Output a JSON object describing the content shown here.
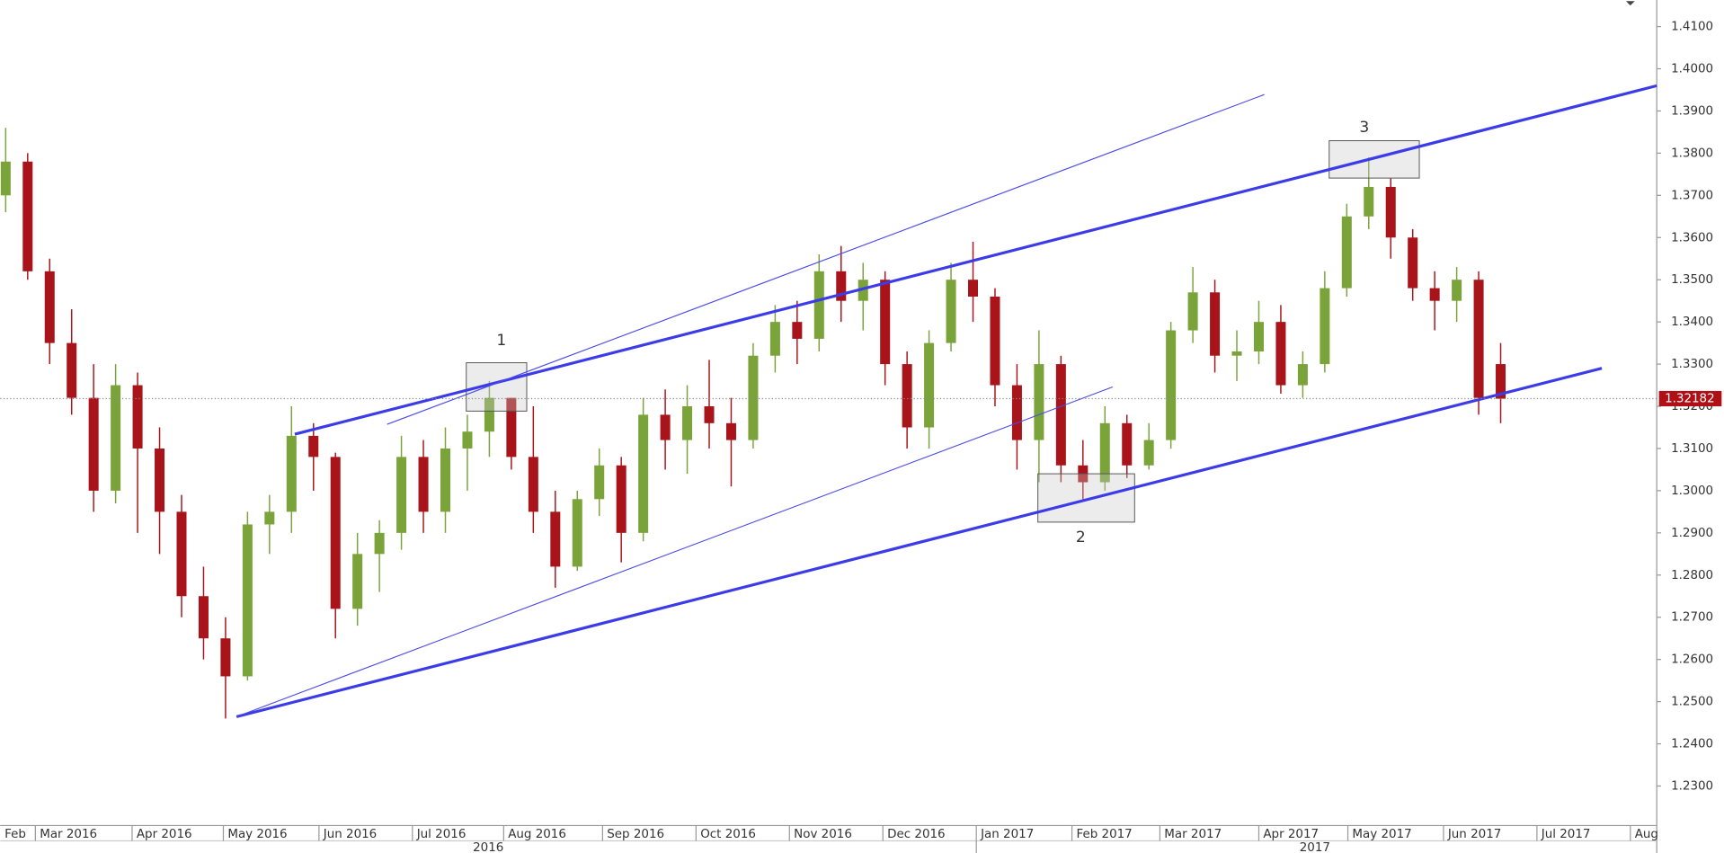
{
  "chart_data": {
    "type": "candlestick",
    "open": [
      1.37,
      1.378,
      1.352,
      1.335,
      1.322,
      1.3,
      1.325,
      1.31,
      1.295,
      1.275,
      1.265,
      1.256,
      1.292,
      1.295,
      1.313,
      1.308,
      1.272,
      1.285,
      1.29,
      1.308,
      1.295,
      1.31,
      1.314,
      1.322,
      1.308,
      1.295,
      1.282,
      1.298,
      1.306,
      1.29,
      1.318,
      1.312,
      1.32,
      1.316,
      1.312,
      1.332,
      1.34,
      1.336,
      1.352,
      1.345,
      1.35,
      1.33,
      1.315,
      1.335,
      1.35,
      1.346,
      1.325,
      1.312,
      1.33,
      1.306,
      1.302,
      1.316,
      1.306,
      1.312,
      1.338,
      1.347,
      1.332,
      1.333,
      1.34,
      1.325,
      1.33,
      1.348,
      1.365,
      1.372,
      1.36,
      1.348,
      1.345,
      1.35,
      1.33
    ],
    "high": [
      1.386,
      1.38,
      1.355,
      1.343,
      1.33,
      1.33,
      1.328,
      1.315,
      1.299,
      1.282,
      1.27,
      1.295,
      1.299,
      1.32,
      1.316,
      1.309,
      1.29,
      1.293,
      1.313,
      1.312,
      1.315,
      1.318,
      1.326,
      1.322,
      1.32,
      1.3,
      1.3,
      1.31,
      1.308,
      1.322,
      1.324,
      1.325,
      1.331,
      1.322,
      1.335,
      1.344,
      1.345,
      1.356,
      1.358,
      1.354,
      1.352,
      1.333,
      1.338,
      1.354,
      1.359,
      1.348,
      1.33,
      1.338,
      1.332,
      1.312,
      1.32,
      1.318,
      1.316,
      1.34,
      1.353,
      1.35,
      1.338,
      1.345,
      1.344,
      1.333,
      1.352,
      1.368,
      1.379,
      1.374,
      1.362,
      1.352,
      1.353,
      1.352,
      1.335
    ],
    "low": [
      1.366,
      1.35,
      1.33,
      1.318,
      1.295,
      1.297,
      1.29,
      1.285,
      1.27,
      1.26,
      1.246,
      1.255,
      1.285,
      1.29,
      1.3,
      1.265,
      1.268,
      1.276,
      1.286,
      1.29,
      1.29,
      1.3,
      1.308,
      1.305,
      1.29,
      1.277,
      1.281,
      1.294,
      1.283,
      1.288,
      1.305,
      1.304,
      1.31,
      1.301,
      1.31,
      1.328,
      1.33,
      1.333,
      1.34,
      1.338,
      1.325,
      1.31,
      1.31,
      1.333,
      1.34,
      1.32,
      1.305,
      1.302,
      1.302,
      1.298,
      1.3,
      1.303,
      1.305,
      1.31,
      1.335,
      1.328,
      1.326,
      1.33,
      1.323,
      1.322,
      1.328,
      1.346,
      1.362,
      1.355,
      1.345,
      1.338,
      1.34,
      1.318,
      1.316
    ],
    "close": [
      1.378,
      1.352,
      1.335,
      1.322,
      1.3,
      1.325,
      1.31,
      1.295,
      1.275,
      1.265,
      1.256,
      1.292,
      1.295,
      1.313,
      1.308,
      1.272,
      1.285,
      1.29,
      1.308,
      1.295,
      1.31,
      1.314,
      1.322,
      1.308,
      1.295,
      1.282,
      1.298,
      1.306,
      1.29,
      1.318,
      1.312,
      1.32,
      1.316,
      1.312,
      1.332,
      1.34,
      1.336,
      1.352,
      1.345,
      1.35,
      1.33,
      1.315,
      1.335,
      1.35,
      1.346,
      1.325,
      1.312,
      1.33,
      1.306,
      1.302,
      1.316,
      1.306,
      1.312,
      1.338,
      1.347,
      1.332,
      1.333,
      1.34,
      1.325,
      1.33,
      1.348,
      1.365,
      1.372,
      1.36,
      1.348,
      1.345,
      1.35,
      1.322,
      1.3218
    ],
    "up_color": "#7aa33a",
    "down_color": "#a8141a",
    "last_value": 1.32182,
    "ylim": [
      1.2209,
      1.4163
    ],
    "yticks": [
      {
        "value": 1.23,
        "label": "1.2300"
      },
      {
        "value": 1.24,
        "label": "1.2400"
      },
      {
        "value": 1.25,
        "label": "1.2500"
      },
      {
        "value": 1.26,
        "label": "1.2600"
      },
      {
        "value": 1.27,
        "label": "1.2700"
      },
      {
        "value": 1.28,
        "label": "1.2800"
      },
      {
        "value": 1.29,
        "label": "1.2900"
      },
      {
        "value": 1.3,
        "label": "1.3000"
      },
      {
        "value": 1.31,
        "label": "1.3100"
      },
      {
        "value": 1.32,
        "label": "1.3200"
      },
      {
        "value": 1.33,
        "label": "1.3300"
      },
      {
        "value": 1.34,
        "label": "1.3400"
      },
      {
        "value": 1.35,
        "label": "1.3500"
      },
      {
        "value": 1.36,
        "label": "1.3600"
      },
      {
        "value": 1.37,
        "label": "1.3700"
      },
      {
        "value": 1.38,
        "label": "1.3800"
      },
      {
        "value": 1.39,
        "label": "1.3900"
      },
      {
        "value": 1.4,
        "label": "1.4000"
      },
      {
        "value": 1.41,
        "label": "1.4100"
      }
    ],
    "month_labels": [
      "Feb",
      "Mar 2016",
      "Apr 2016",
      "May 2016",
      "Jun 2016",
      "Jul 2016",
      "Aug 2016",
      "Sep 2016",
      "Oct 2016",
      "Nov 2016",
      "Dec 2016",
      "Jan 2017",
      "Feb 2017",
      "Mar 2017",
      "Apr 2017",
      "May 2017",
      "Jun 2017",
      "Jul 2017",
      "Aug"
    ],
    "year_labels": [
      "2016",
      "2017"
    ],
    "annotations": [
      "1",
      "2",
      "3"
    ]
  }
}
